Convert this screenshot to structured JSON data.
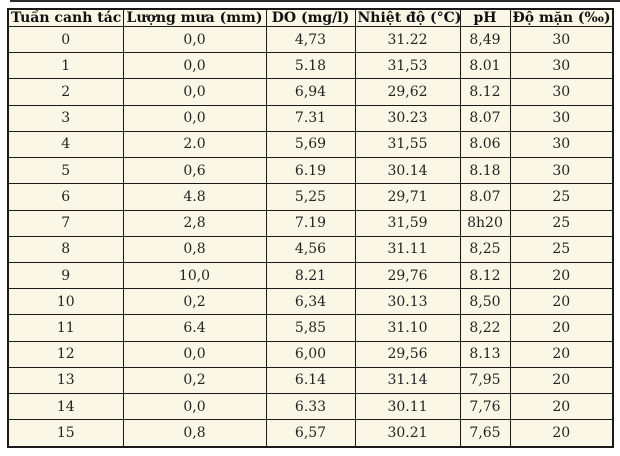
{
  "colors": {
    "cell_background": "#FAF7E6",
    "border": "#1A1A1A",
    "header_text": "#111111",
    "cell_text": "#242424",
    "page_background": "#FFFFFF"
  },
  "table": {
    "columns": [
      "Tuần canh tác",
      "Lượng mưa (mm)",
      "DO (mg/l)",
      "Nhiệt độ (°C)",
      "pH",
      "Độ mặn (‰)"
    ],
    "rows": [
      [
        "0",
        "0,0",
        "4,73",
        "31.22",
        "8,49",
        "30"
      ],
      [
        "1",
        "0,0",
        "5.18",
        "31,53",
        "8.01",
        "30"
      ],
      [
        "2",
        "0,0",
        "6,94",
        "29,62",
        "8.12",
        "30"
      ],
      [
        "3",
        "0,0",
        "7.31",
        "30.23",
        "8.07",
        "30"
      ],
      [
        "4",
        "2.0",
        "5,69",
        "31,55",
        "8.06",
        "30"
      ],
      [
        "5",
        "0,6",
        "6.19",
        "30.14",
        "8.18",
        "30"
      ],
      [
        "6",
        "4.8",
        "5,25",
        "29,71",
        "8.07",
        "25"
      ],
      [
        "7",
        "2,8",
        "7.19",
        "31,59",
        "8h20",
        "25"
      ],
      [
        "8",
        "0,8",
        "4,56",
        "31.11",
        "8,25",
        "25"
      ],
      [
        "9",
        "10,0",
        "8.21",
        "29,76",
        "8.12",
        "20"
      ],
      [
        "10",
        "0,2",
        "6,34",
        "30.13",
        "8,50",
        "20"
      ],
      [
        "11",
        "6.4",
        "5,85",
        "31.10",
        "8,22",
        "20"
      ],
      [
        "12",
        "0,0",
        "6,00",
        "29,56",
        "8.13",
        "20"
      ],
      [
        "13",
        "0,2",
        "6.14",
        "31.14",
        "7,95",
        "20"
      ],
      [
        "14",
        "0,0",
        "6.33",
        "30.11",
        "7,76",
        "20"
      ],
      [
        "15",
        "0,8",
        "6,57",
        "30.21",
        "7,65",
        "20"
      ]
    ]
  }
}
